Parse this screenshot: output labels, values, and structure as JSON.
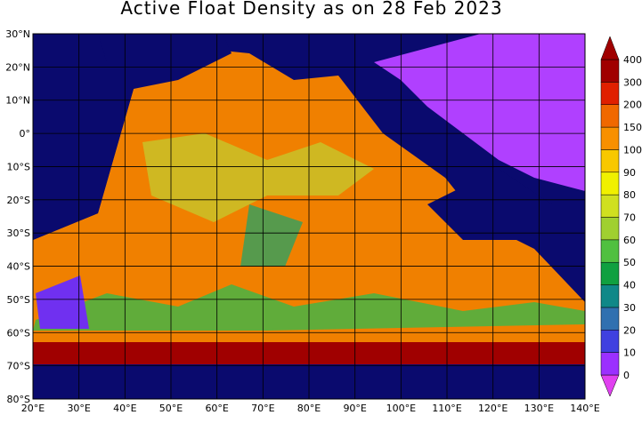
{
  "title": "Active Float Density as on 28 Feb 2023",
  "map": {
    "xlim": [
      20,
      140
    ],
    "xticks": [
      {
        "value": 20,
        "label": "20°E"
      },
      {
        "value": 30,
        "label": "30°E"
      },
      {
        "value": 40,
        "label": "40°E"
      },
      {
        "value": 50,
        "label": "50°E"
      },
      {
        "value": 60,
        "label": "60°E"
      },
      {
        "value": 70,
        "label": "70°E"
      },
      {
        "value": 80,
        "label": "80°E"
      },
      {
        "value": 90,
        "label": "90°E"
      },
      {
        "value": 100,
        "label": "100°E"
      },
      {
        "value": 110,
        "label": "110°E"
      },
      {
        "value": 120,
        "label": "120°E"
      },
      {
        "value": 130,
        "label": "130°E"
      },
      {
        "value": 140,
        "label": "140°E"
      }
    ],
    "ylim": [
      -80,
      30
    ],
    "yticks": [
      {
        "value": 30,
        "label": "30°N"
      },
      {
        "value": 20,
        "label": "20°N"
      },
      {
        "value": 10,
        "label": "10°N"
      },
      {
        "value": 0,
        "label": "0°"
      },
      {
        "value": -10,
        "label": "10°S"
      },
      {
        "value": -20,
        "label": "20°S"
      },
      {
        "value": -30,
        "label": "30°S"
      },
      {
        "value": -40,
        "label": "40°S"
      },
      {
        "value": -50,
        "label": "50°S"
      },
      {
        "value": -60,
        "label": "60°S"
      },
      {
        "value": -70,
        "label": "70°S"
      },
      {
        "value": -80,
        "label": "80°S"
      }
    ],
    "grid": true
  },
  "colorbar": {
    "levels": [
      0,
      10,
      20,
      30,
      40,
      50,
      60,
      70,
      80,
      90,
      100,
      150,
      200,
      300,
      400
    ],
    "colors": [
      "#e040f0",
      "#9b30ff",
      "#4040e0",
      "#3070b0",
      "#108888",
      "#10a040",
      "#50c040",
      "#a0d030",
      "#d0e020",
      "#f0f000",
      "#f8c800",
      "#f89000",
      "#f06800",
      "#e02000",
      "#a00000",
      "#a00000"
    ]
  }
}
